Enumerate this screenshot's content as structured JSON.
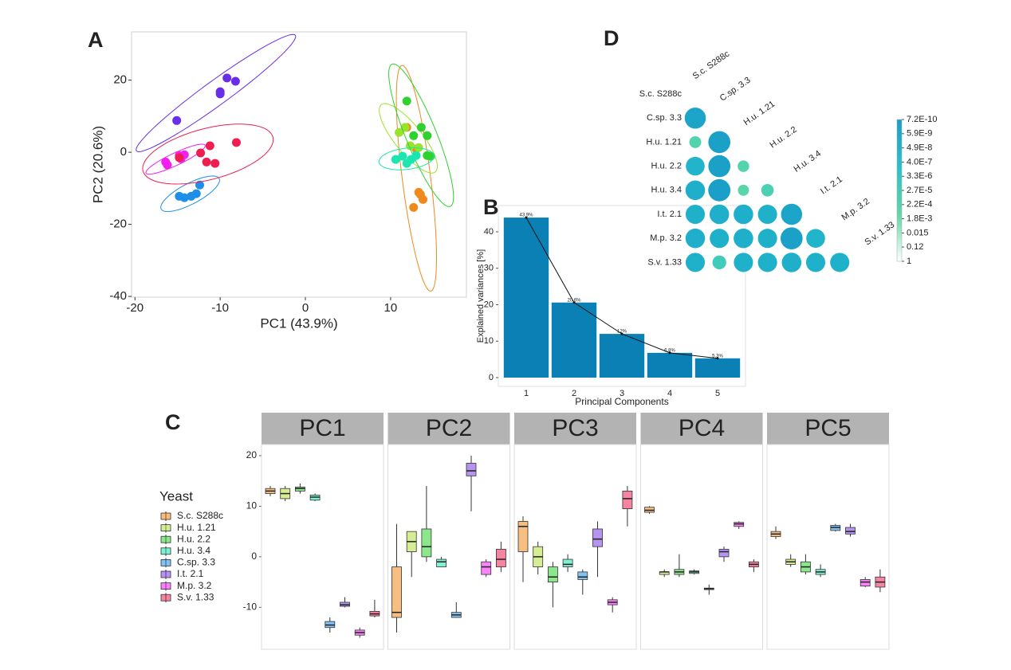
{
  "chart_data": [
    {
      "panel": "A",
      "type": "scatter",
      "x_label": "PC1 (43.9%)",
      "y_label": "PC2 (20.6%)",
      "xlim": [
        -20.4,
        18.9
      ],
      "ylim": [
        -40.2,
        33.4
      ],
      "xticks": [
        -20,
        -10,
        0,
        10
      ],
      "yticks": [
        20,
        0,
        -20,
        -40
      ],
      "ellipses": true,
      "series": [
        {
          "color": "#f0881c",
          "x": [
            11.9,
            13.0,
            13.5,
            13.8,
            12.7,
            13.3
          ],
          "y": [
            6.9,
            0.9,
            -11.7,
            -13.1,
            -15.3,
            -11.1
          ]
        },
        {
          "color": "#9be22d",
          "x": [
            11.7,
            12.3,
            13.3,
            11.0
          ],
          "y": [
            6.9,
            1.8,
            1.3,
            5.5
          ]
        },
        {
          "color": "#2ed12e",
          "x": [
            11.9,
            13.6,
            14.3,
            14.3,
            14.7,
            12.7
          ],
          "y": [
            14.2,
            6.9,
            4.6,
            -0.9,
            -1.1,
            4.6
          ]
        },
        {
          "color": "#19e6b0",
          "x": [
            10.6,
            11.4,
            12.4,
            13.0,
            11.9
          ],
          "y": [
            -2.0,
            -1.1,
            -2.0,
            -0.9,
            -3.1
          ]
        },
        {
          "color": "#1e8fe8",
          "x": [
            -14.8,
            -14.2,
            -13.4,
            -12.4,
            -12.8
          ],
          "y": [
            -12.2,
            -12.6,
            -12.2,
            -9.1,
            -11.5
          ]
        },
        {
          "color": "#6a2ee8",
          "x": [
            -15.1,
            -10.0,
            -10.0,
            -9.2,
            -8.2
          ],
          "y": [
            8.8,
            16.8,
            16.2,
            20.6,
            19.7
          ]
        },
        {
          "color": "#f21ff2",
          "x": [
            -16.4,
            -16.2,
            -14.8,
            -14.2,
            -14.6
          ],
          "y": [
            -2.7,
            -3.5,
            -0.9,
            -0.7,
            -1.8
          ]
        },
        {
          "color": "#ee1e50",
          "x": [
            -11.2,
            -8.1,
            -11.6,
            -10.6,
            -12.3,
            -14.8
          ],
          "y": [
            1.8,
            2.7,
            -2.7,
            -3.1,
            -0.2,
            -1.5
          ]
        }
      ]
    },
    {
      "panel": "B",
      "type": "bar",
      "categories": [
        "1",
        "2",
        "3",
        "4",
        "5"
      ],
      "values": [
        43.9,
        20.6,
        12,
        6.8,
        5.3
      ],
      "value_labels": [
        "43.9%",
        "20.6%",
        "12%",
        "6.8%",
        "5.3%"
      ],
      "color": "#0a80b4",
      "x_label": "Principal Components",
      "y_label": "Explained variances [%]",
      "ylim": [
        -2.4,
        47.2
      ],
      "yticks": [
        0,
        10,
        20,
        30,
        40
      ],
      "line": true
    },
    {
      "panel": "C",
      "type": "box",
      "facets": [
        "PC1",
        "PC2",
        "PC3",
        "PC4",
        "PC5"
      ],
      "ylim": [
        -18.3,
        22.2
      ],
      "yticks": [
        -10,
        0,
        10,
        20
      ],
      "legend_title": "Yeast",
      "series": [
        {
          "name": "S.c. S288c",
          "color": "#f0881c",
          "values": [
            [
              12,
              12.5,
              13,
              13.5,
              14
            ],
            [
              -15,
              -12,
              -11,
              -2,
              6.5
            ],
            [
              -5,
              1,
              6,
              7,
              8
            ],
            [
              8.5,
              8.8,
              9.2,
              9.8,
              10
            ],
            [
              3.5,
              4,
              4.5,
              5,
              6
            ]
          ]
        },
        {
          "name": "H.u. 1.21",
          "color": "#b5e03a",
          "values": [
            [
              11,
              11.5,
              12.5,
              13.5,
              14
            ],
            [
              -4,
              1,
              3,
              5,
              5
            ],
            [
              -3.5,
              -2,
              0,
              2,
              3
            ],
            [
              -4,
              -3.5,
              -3,
              -3,
              -2.5
            ],
            [
              -2,
              -1.5,
              -1,
              -0.5,
              0.5
            ]
          ]
        },
        {
          "name": "H.u. 2.2",
          "color": "#2ed12e",
          "values": [
            [
              12.5,
              13,
              13.5,
              13.8,
              14.5
            ],
            [
              -1,
              0,
              2,
              5.5,
              14
            ],
            [
              -10,
              -5,
              -4,
              -2,
              -1
            ],
            [
              -4,
              -3.5,
              -3,
              -2.5,
              0.5
            ],
            [
              -3.5,
              -3,
              -2,
              -1,
              0.5
            ]
          ]
        },
        {
          "name": "H.u. 3.4",
          "color": "#19e6b0",
          "values": [
            [
              11,
              11.2,
              11.8,
              12.2,
              12.5
            ],
            [
              -2,
              -2,
              -1,
              -0.5,
              0
            ],
            [
              -3,
              -2,
              -1.5,
              -0.5,
              0.5
            ],
            [
              -3.5,
              -3.3,
              -3,
              -2.8,
              -2.5
            ],
            [
              -4,
              -3.5,
              -3,
              -2.5,
              -1.5
            ]
          ]
        },
        {
          "name": "C.sp. 3.3",
          "color": "#1e8fe8",
          "values": [
            [
              -15,
              -14,
              -13.5,
              -12.8,
              -12
            ],
            [
              -12,
              -12,
              -11.5,
              -11,
              -9
            ],
            [
              -7.5,
              -4.5,
              -4,
              -3,
              -2.5
            ],
            [
              -7.5,
              -6.5,
              -6.3,
              -6.2,
              -5.5
            ],
            [
              5,
              5.2,
              5.8,
              6.2,
              6.5
            ]
          ]
        },
        {
          "name": "I.t. 2.1",
          "color": "#7a3ee8",
          "values": [
            [
              -10,
              -9.8,
              -9.5,
              -9,
              -8
            ],
            [
              9,
              16,
              17,
              18.5,
              20
            ],
            [
              -4,
              2,
              3.5,
              5.5,
              7
            ],
            [
              -1,
              0,
              1,
              1.5,
              2
            ],
            [
              4,
              4.5,
              5,
              5.8,
              6.5
            ]
          ]
        },
        {
          "name": "M.p. 3.2",
          "color": "#f21ff2",
          "values": [
            [
              -16,
              -15.5,
              -15,
              -14.5,
              -14
            ],
            [
              -4,
              -3.5,
              -2,
              -1,
              -0.5
            ],
            [
              -11,
              -9.5,
              -9,
              -8.5,
              -8
            ],
            [
              5.5,
              6,
              6.5,
              6.8,
              7
            ],
            [
              -6,
              -5.8,
              -5,
              -4.5,
              -4
            ]
          ]
        },
        {
          "name": "S.v. 1.33",
          "color": "#ee1e50",
          "values": [
            [
              -12,
              -11.7,
              -11.3,
              -10.8,
              -8.5
            ],
            [
              -3,
              -2,
              -0.5,
              1.5,
              3
            ],
            [
              6,
              9.5,
              11.5,
              13,
              14
            ],
            [
              -3,
              -2,
              -1.5,
              -1,
              -0.5
            ],
            [
              -7,
              -6,
              -5,
              -4,
              -2.5
            ]
          ]
        }
      ]
    },
    {
      "panel": "D",
      "type": "corrplot",
      "labels": [
        "S.c. S288c",
        "C.sp. 3.3",
        "H.u. 1.21",
        "H.u. 2.2",
        "H.u. 3.4",
        "I.t. 2.1",
        "M.p. 3.2",
        "S.v. 1.33"
      ],
      "values": [
        [],
        [
          3e-09
        ],
        [
          0.0002,
          1e-09
        ],
        [
          5e-08,
          1e-09,
          0.0003
        ],
        [
          2e-08,
          8e-10,
          0.0005,
          0.0001
        ],
        [
          3e-08,
          2e-08,
          2e-08,
          3e-08,
          3e-09
        ],
        [
          2e-08,
          3e-08,
          2e-08,
          3e-08,
          1e-09,
          5e-08
        ],
        [
          3e-08,
          2e-05,
          3e-08,
          3e-08,
          2e-08,
          3e-08,
          3e-08
        ]
      ],
      "log_scale": true,
      "clim": [
        7.2e-10,
        1
      ],
      "colors": [
        "#1a9ec8",
        "#26c2cc",
        "#5fd6a6",
        "#ffffff"
      ],
      "colorbar_ticks": [
        {
          "value": 7.2e-10,
          "label": "7.2E-10"
        },
        {
          "value": 5.9e-09,
          "label": "5.9E-9"
        },
        {
          "value": 4.9e-08,
          "label": "4.9E-8"
        },
        {
          "value": 4e-07,
          "label": "4.0E-7"
        },
        {
          "value": 3.3e-06,
          "label": "3.3E-6"
        },
        {
          "value": 2.7e-05,
          "label": "2.7E-5"
        },
        {
          "value": 0.00022,
          "label": "2.2E-4"
        },
        {
          "value": 0.0018,
          "label": "1.8E-3"
        },
        0.015,
        0.12,
        1
      ]
    }
  ]
}
